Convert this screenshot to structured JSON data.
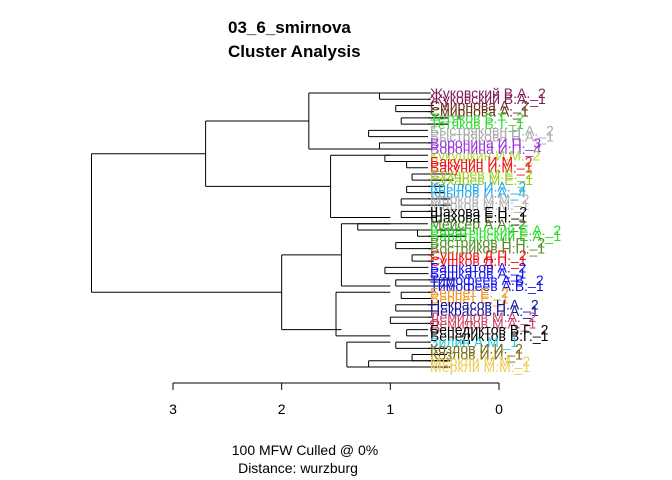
{
  "chart_data": {
    "type": "dendrogram",
    "title_lines": [
      "03_6_smirnova",
      "Cluster Analysis"
    ],
    "caption_lines": [
      "100 MFW  Culled @ 0%",
      "Distance: wurzburg"
    ],
    "axis": {
      "ticks": [
        3,
        2,
        1,
        0
      ],
      "range": [
        0,
        3.0
      ]
    },
    "leaves": [
      {
        "label": "Жуковский В.А._2",
        "color": "#7f1a5c",
        "height": 0.63
      },
      {
        "label": "Жуковский В.А._1",
        "color": "#7f1a5c",
        "height": 0.63
      },
      {
        "label": "Смирнова А._2",
        "color": "#6b2f17",
        "height": 0.6
      },
      {
        "label": "Смирнова А._1",
        "color": "#6b2f17",
        "height": 0.6
      },
      {
        "label": "Тетяков Б.Т._2",
        "color": "#33dd33",
        "height": 0.47
      },
      {
        "label": "Тетяков Б.Т._1",
        "color": "#33dd33",
        "height": 0.47
      },
      {
        "label": "Быстряковн Н.А._2",
        "color": "#a9a9a9",
        "height": 0.68
      },
      {
        "label": "Быстряковн Н.А._1",
        "color": "#a9a9a9",
        "height": 0.68
      },
      {
        "label": "Воронина И.П._3",
        "color": "#9933dd",
        "height": 0.58
      },
      {
        "label": "Воронина И.П._4",
        "color": "#9933dd",
        "height": 0.58
      },
      {
        "label": "Кукушкин И.М._2",
        "color": "#aadd33",
        "height": 0.68
      },
      {
        "label": "Бакунин И.М._2",
        "color": "#ee1111",
        "height": 0.68
      },
      {
        "label": "Бакунин И.М._1",
        "color": "#ee1111",
        "height": 0.68
      },
      {
        "label": "Сухарев М.Е._2",
        "color": "#99cc22",
        "height": 0.42
      },
      {
        "label": "Сухарев М.Е._1",
        "color": "#99cc22",
        "height": 0.42
      },
      {
        "label": "Крылов И.А._2",
        "color": "#22aaee",
        "height": 0.5
      },
      {
        "label": "Крылов И.А._4",
        "color": "#22aaee",
        "height": 0.5
      },
      {
        "label": "Марков М.М._2",
        "color": "#b0b0b0",
        "height": 0.45
      },
      {
        "label": "Марков М.М._1",
        "color": "#b0b0b0",
        "height": 0.45
      },
      {
        "label": "Шахова Е.Н._2",
        "color": "#000000",
        "height": 0.58
      },
      {
        "label": "Шахова Е.Н._1",
        "color": "#000000",
        "height": 0.58
      },
      {
        "label": "Мейсер А.А._2",
        "color": "#4a7f1a",
        "height": 0.75
      },
      {
        "label": "Баратынский Е.А._2",
        "color": "#22dd22",
        "height": 0.3
      },
      {
        "label": "Баратынский Е.А._1",
        "color": "#22dd22",
        "height": 0.3
      },
      {
        "label": "Востриков Н.П._2",
        "color": "#5a8a2a",
        "height": 0.6
      },
      {
        "label": "Востриков Н.П._1",
        "color": "#5a8a2a",
        "height": 0.6
      },
      {
        "label": "Сушков Д.П._2",
        "color": "#ee1111",
        "height": 0.6
      },
      {
        "label": "Сушков Д.П._1",
        "color": "#ee1111",
        "height": 0.6
      },
      {
        "label": "Башкатов А._2",
        "color": "#1111ee",
        "height": 0.65
      },
      {
        "label": "Башкатов А._1",
        "color": "#1111ee",
        "height": 0.65
      },
      {
        "label": "Тимофеев А.В._2",
        "color": "#1111ee",
        "height": 0.4
      },
      {
        "label": "Тимофеев А.В._1",
        "color": "#1111ee",
        "height": 0.4
      },
      {
        "label": "Бернет Е._2",
        "color": "#ee9922",
        "height": 0.58
      },
      {
        "label": "Бернет Е._1",
        "color": "#ee9922",
        "height": 0.58
      },
      {
        "label": "Некрасов Н.А._2",
        "color": "#111199",
        "height": 0.58
      },
      {
        "label": "Некрасов Н.А._1",
        "color": "#111199",
        "height": 0.58
      },
      {
        "label": "Демидов М.А._2",
        "color": "#cc4466",
        "height": 0.6
      },
      {
        "label": "Демидов М.А._1",
        "color": "#cc4466",
        "height": 0.6
      },
      {
        "label": "Бенедиктов В.Г._2",
        "color": "#000000",
        "height": 0.73
      },
      {
        "label": "Бенедиктов В.Г._1",
        "color": "#000000",
        "height": 0.73
      },
      {
        "label": "Зилин А.М._1",
        "color": "#22ccdd",
        "height": 0.63
      },
      {
        "label": "Козлов И.И._2",
        "color": "#7a6a10",
        "height": 0.48
      },
      {
        "label": "Козлов И.И._1",
        "color": "#7a6a10",
        "height": 0.48
      },
      {
        "label": "Меркли М.М._2",
        "color": "#eecc55",
        "height": 0.45
      },
      {
        "label": "Меркли М.М._1",
        "color": "#eecc55",
        "height": 0.45
      }
    ],
    "merges": [
      {
        "a": 0,
        "b": 1,
        "height": 1.1
      },
      {
        "a": 2,
        "b": 3,
        "height": 0.95
      },
      {
        "a": 4,
        "b": 5,
        "height": 0.9
      },
      {
        "a": 6,
        "b": 7,
        "height": 1.2
      },
      {
        "a": 8,
        "b": 9,
        "height": 1.1
      },
      {
        "a": 10,
        "b": 11,
        "height": 1.05
      },
      {
        "a": 11,
        "b": 12,
        "height": 0.85
      },
      {
        "a": 13,
        "b": 14,
        "height": 0.8
      },
      {
        "a": 15,
        "b": 16,
        "height": 0.85
      },
      {
        "a": 17,
        "b": 18,
        "height": 0.9
      },
      {
        "a": 19,
        "b": 20,
        "height": 0.9
      },
      {
        "a": 21,
        "b": 22,
        "height": 1.3
      },
      {
        "a": 22,
        "b": 23,
        "height": 0.75
      },
      {
        "a": 24,
        "b": 25,
        "height": 0.95
      },
      {
        "a": 26,
        "b": 27,
        "height": 0.8
      },
      {
        "a": 28,
        "b": 29,
        "height": 1.05
      },
      {
        "a": 30,
        "b": 31,
        "height": 0.95
      },
      {
        "a": 32,
        "b": 33,
        "height": 0.9
      },
      {
        "a": 34,
        "b": 35,
        "height": 0.95
      },
      {
        "a": 36,
        "b": 37,
        "height": 1.0
      },
      {
        "a": 38,
        "b": 39,
        "height": 0.85
      },
      {
        "a": 40,
        "b": 41,
        "height": 0.95
      },
      {
        "a": 42,
        "b": 43,
        "height": 0.8
      },
      {
        "a": 43,
        "b": 44,
        "height": 1.2
      }
    ]
  }
}
